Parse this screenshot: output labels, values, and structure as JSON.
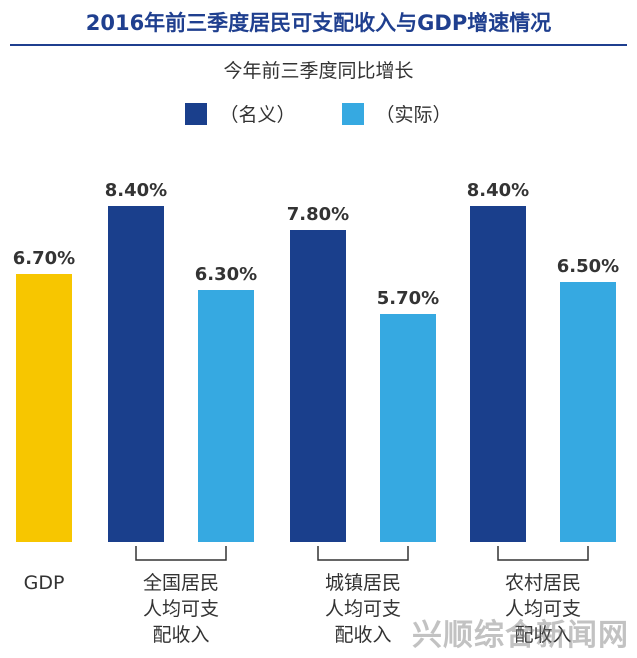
{
  "title": "2016年前三季度居民可支配收入与GDP增速情况",
  "subtitle": "今年前三季度同比增长",
  "colors": {
    "title": "#1f3f8f",
    "nominal": "#1a3f8c",
    "real": "#36a9e1",
    "gdp": "#f7c600",
    "label": "#333333"
  },
  "chart_data": {
    "type": "bar",
    "title": "2016年前三季度居民可支配收入与GDP增速情况",
    "subtitle": "今年前三季度同比增长",
    "ylim": [
      0,
      10
    ],
    "grid": false,
    "legend_position": "top-center",
    "legend": [
      "（名义）",
      "（实际）"
    ],
    "groups": [
      {
        "label_lines": [
          "GDP"
        ],
        "bars": [
          {
            "series": "GDP",
            "value": 6.7,
            "label": "6.70%"
          }
        ]
      },
      {
        "label_lines": [
          "全国居民",
          "人均可支",
          "配收入"
        ],
        "bars": [
          {
            "series": "（名义）",
            "value": 8.4,
            "label": "8.40%"
          },
          {
            "series": "（实际）",
            "value": 6.3,
            "label": "6.30%"
          }
        ]
      },
      {
        "label_lines": [
          "城镇居民",
          "人均可支",
          "配收入"
        ],
        "bars": [
          {
            "series": "（名义）",
            "value": 7.8,
            "label": "7.80%"
          },
          {
            "series": "（实际）",
            "value": 5.7,
            "label": "5.70%"
          }
        ]
      },
      {
        "label_lines": [
          "农村居民",
          "人均可支",
          "配收入"
        ],
        "bars": [
          {
            "series": "（名义）",
            "value": 8.4,
            "label": "8.40%"
          },
          {
            "series": "（实际）",
            "value": 6.5,
            "label": "6.50%"
          }
        ]
      }
    ]
  },
  "watermark": "兴顺综合新闻网"
}
